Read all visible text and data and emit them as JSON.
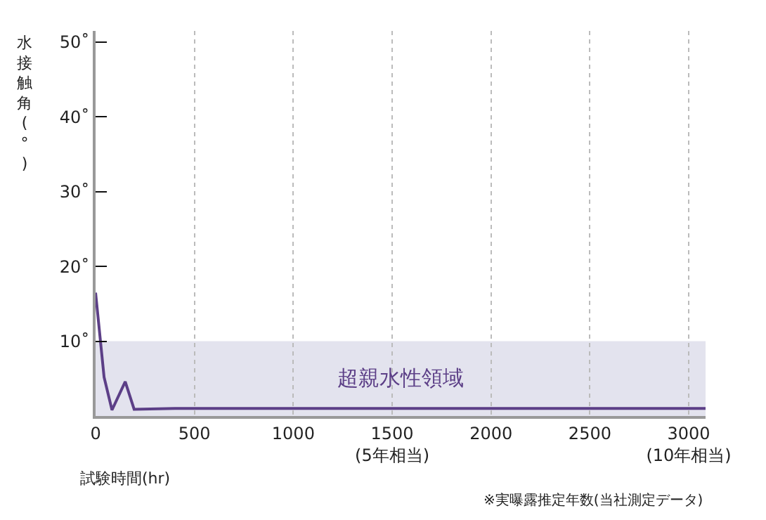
{
  "chart_data": {
    "type": "line",
    "ylabel": "水接触角(°)",
    "xlabel": "試験時間(hr)",
    "x": [
      0,
      43,
      83,
      150,
      195,
      400,
      1000,
      2000,
      3085
    ],
    "series": [
      {
        "color": "#5c3f87",
        "values": [
          16.5,
          5.2,
          0.8,
          4.6,
          0.9,
          1.0,
          1.0,
          1.0,
          1.0
        ]
      }
    ],
    "xlim": [
      0,
      3085
    ],
    "ylim": [
      0,
      51.5
    ],
    "xticks": [
      0,
      500,
      1000,
      {
        "value": 1500,
        "label": "1500\n(5年相当)"
      },
      2000,
      2500,
      {
        "value": 3000,
        "label": "3000\n(10年相当)"
      }
    ],
    "yticks": [
      {
        "value": 10,
        "label": "10˚"
      },
      {
        "value": 20,
        "label": "20˚"
      },
      {
        "value": 30,
        "label": "30˚"
      },
      {
        "value": 40,
        "label": "40˚"
      },
      {
        "value": 50,
        "label": "50˚"
      }
    ],
    "grid": "x",
    "legend": false,
    "marker": "none",
    "line_style": "solid",
    "bands": [
      {
        "axis": "y",
        "from": 0,
        "to": 10,
        "label": "超親水性領域",
        "color": "#e3e3ee"
      }
    ],
    "annotations": [
      "※実曝露推定年数(当社測定データ)"
    ]
  }
}
